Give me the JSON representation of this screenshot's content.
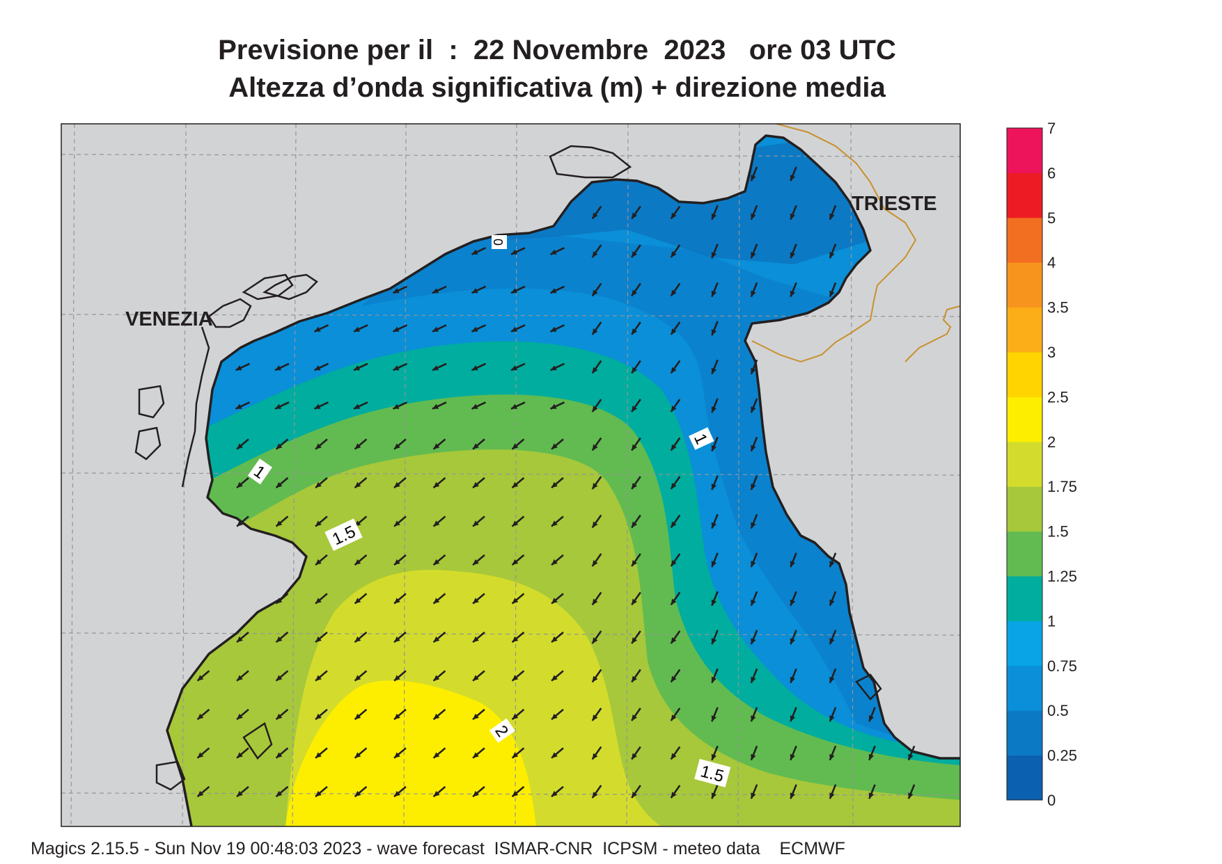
{
  "title": {
    "line1": "Previsione per il  :  22 Novembre  2023   ore 03 UTC",
    "line2": "Altezza d’onda significativa (m) + direzione media"
  },
  "cities": [
    {
      "name": "VENEZIA"
    },
    {
      "name": "TRIESTE"
    }
  ],
  "contour_labels": [
    "1",
    "1",
    "1.5",
    "2",
    "1.5",
    "0"
  ],
  "legend": {
    "levels": [
      "0",
      "0.25",
      "0.5",
      "0.75",
      "1",
      "1.25",
      "1.5",
      "1.75",
      "2",
      "2.5",
      "3",
      "3.5",
      "4",
      "5",
      "6",
      "7"
    ],
    "colors": [
      "#0b60b0",
      "#0c79c4",
      "#0a8fd8",
      "#08a4e6",
      "#00ad9e",
      "#62bb50",
      "#a7c83a",
      "#d3dc2c",
      "#fdee00",
      "#ffd400",
      "#fbae17",
      "#f7941d",
      "#f26f21",
      "#ed1c24",
      "#ed145b"
    ]
  },
  "colors": {
    "land": "#d2d3d5",
    "coast": "#231f20",
    "border": "#c8912e",
    "grid": "#939598"
  },
  "footer": "Magics 2.15.5 - Sun Nov 19 00:48:03 2023 - wave forecast  ISMAR-CNR  ICPSM - meteo data    ECMWF"
}
